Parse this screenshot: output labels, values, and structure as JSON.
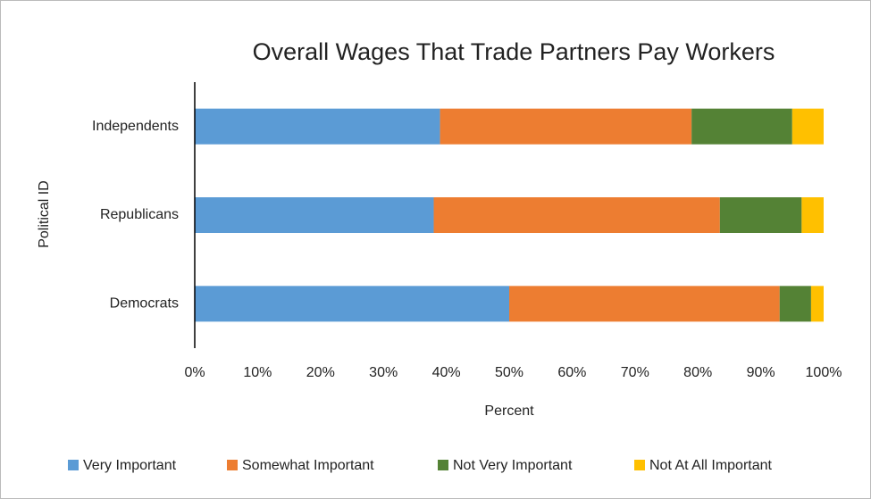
{
  "chart_data": {
    "type": "stacked-bar-horizontal",
    "title": "Overall Wages That Trade Partners Pay Workers",
    "x_label": "Percent",
    "y_label": "Political ID",
    "categories": [
      "Independents",
      "Republicans",
      "Democrats"
    ],
    "series": [
      {
        "name": "Very Important",
        "color": "#5b9bd5",
        "values": [
          39,
          38,
          50
        ]
      },
      {
        "name": "Somewhat Important",
        "color": "#ed7d31",
        "values": [
          40,
          45.5,
          43
        ]
      },
      {
        "name": "Not Very Important",
        "color": "#548235",
        "values": [
          16,
          13,
          5
        ]
      },
      {
        "name": "Not At All Important",
        "color": "#ffc000",
        "values": [
          5,
          3.5,
          2
        ]
      }
    ],
    "xlim": [
      0,
      100
    ],
    "xticks": [
      {
        "value": 0,
        "label": "0%"
      },
      {
        "value": 10,
        "label": "10%"
      },
      {
        "value": 20,
        "label": "20%"
      },
      {
        "value": 30,
        "label": "30%"
      },
      {
        "value": 40,
        "label": "40%"
      },
      {
        "value": 50,
        "label": "50%"
      },
      {
        "value": 60,
        "label": "60%"
      },
      {
        "value": 70,
        "label": "70%"
      },
      {
        "value": 80,
        "label": "80%"
      },
      {
        "value": 90,
        "label": "90%"
      },
      {
        "value": 100,
        "label": "100%"
      }
    ],
    "legend": "bottom"
  }
}
